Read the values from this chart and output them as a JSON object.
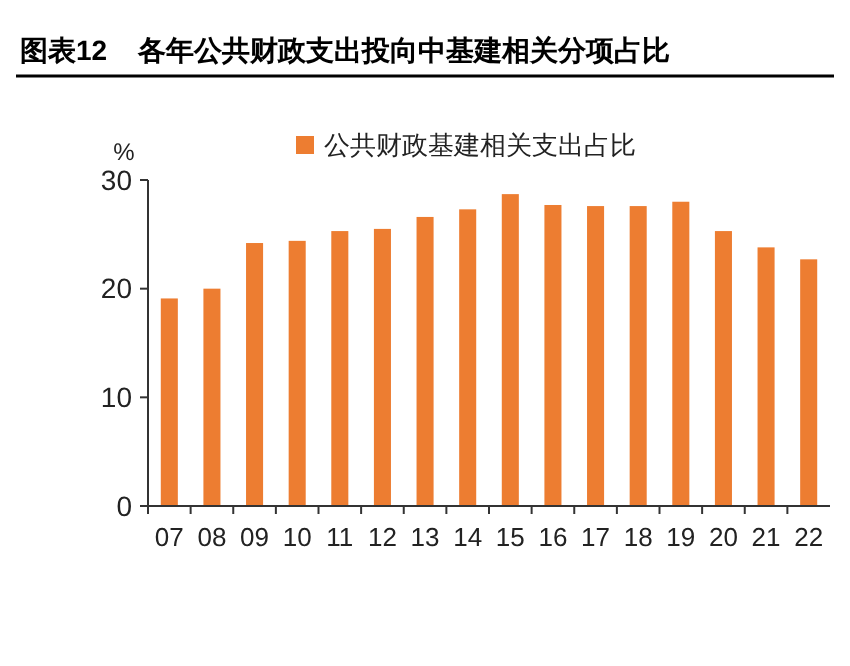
{
  "chart_data": {
    "type": "bar",
    "title": "图表12    各年公共财政支出投向中基建相关分项占比",
    "ylabel": "%",
    "categories": [
      "07",
      "08",
      "09",
      "10",
      "11",
      "12",
      "13",
      "14",
      "15",
      "16",
      "17",
      "18",
      "19",
      "20",
      "21",
      "22"
    ],
    "series": [
      {
        "name": "公共财政基建相关支出占比",
        "color": "#ed7d31",
        "values": [
          19.1,
          20.0,
          24.2,
          24.4,
          25.3,
          25.5,
          26.6,
          27.3,
          28.7,
          27.7,
          27.6,
          27.6,
          28.0,
          25.3,
          23.8,
          22.7
        ]
      }
    ],
    "ylim": [
      0,
      30
    ],
    "yticks": [
      0,
      10,
      20,
      30
    ],
    "grid": false,
    "legend": "top"
  }
}
